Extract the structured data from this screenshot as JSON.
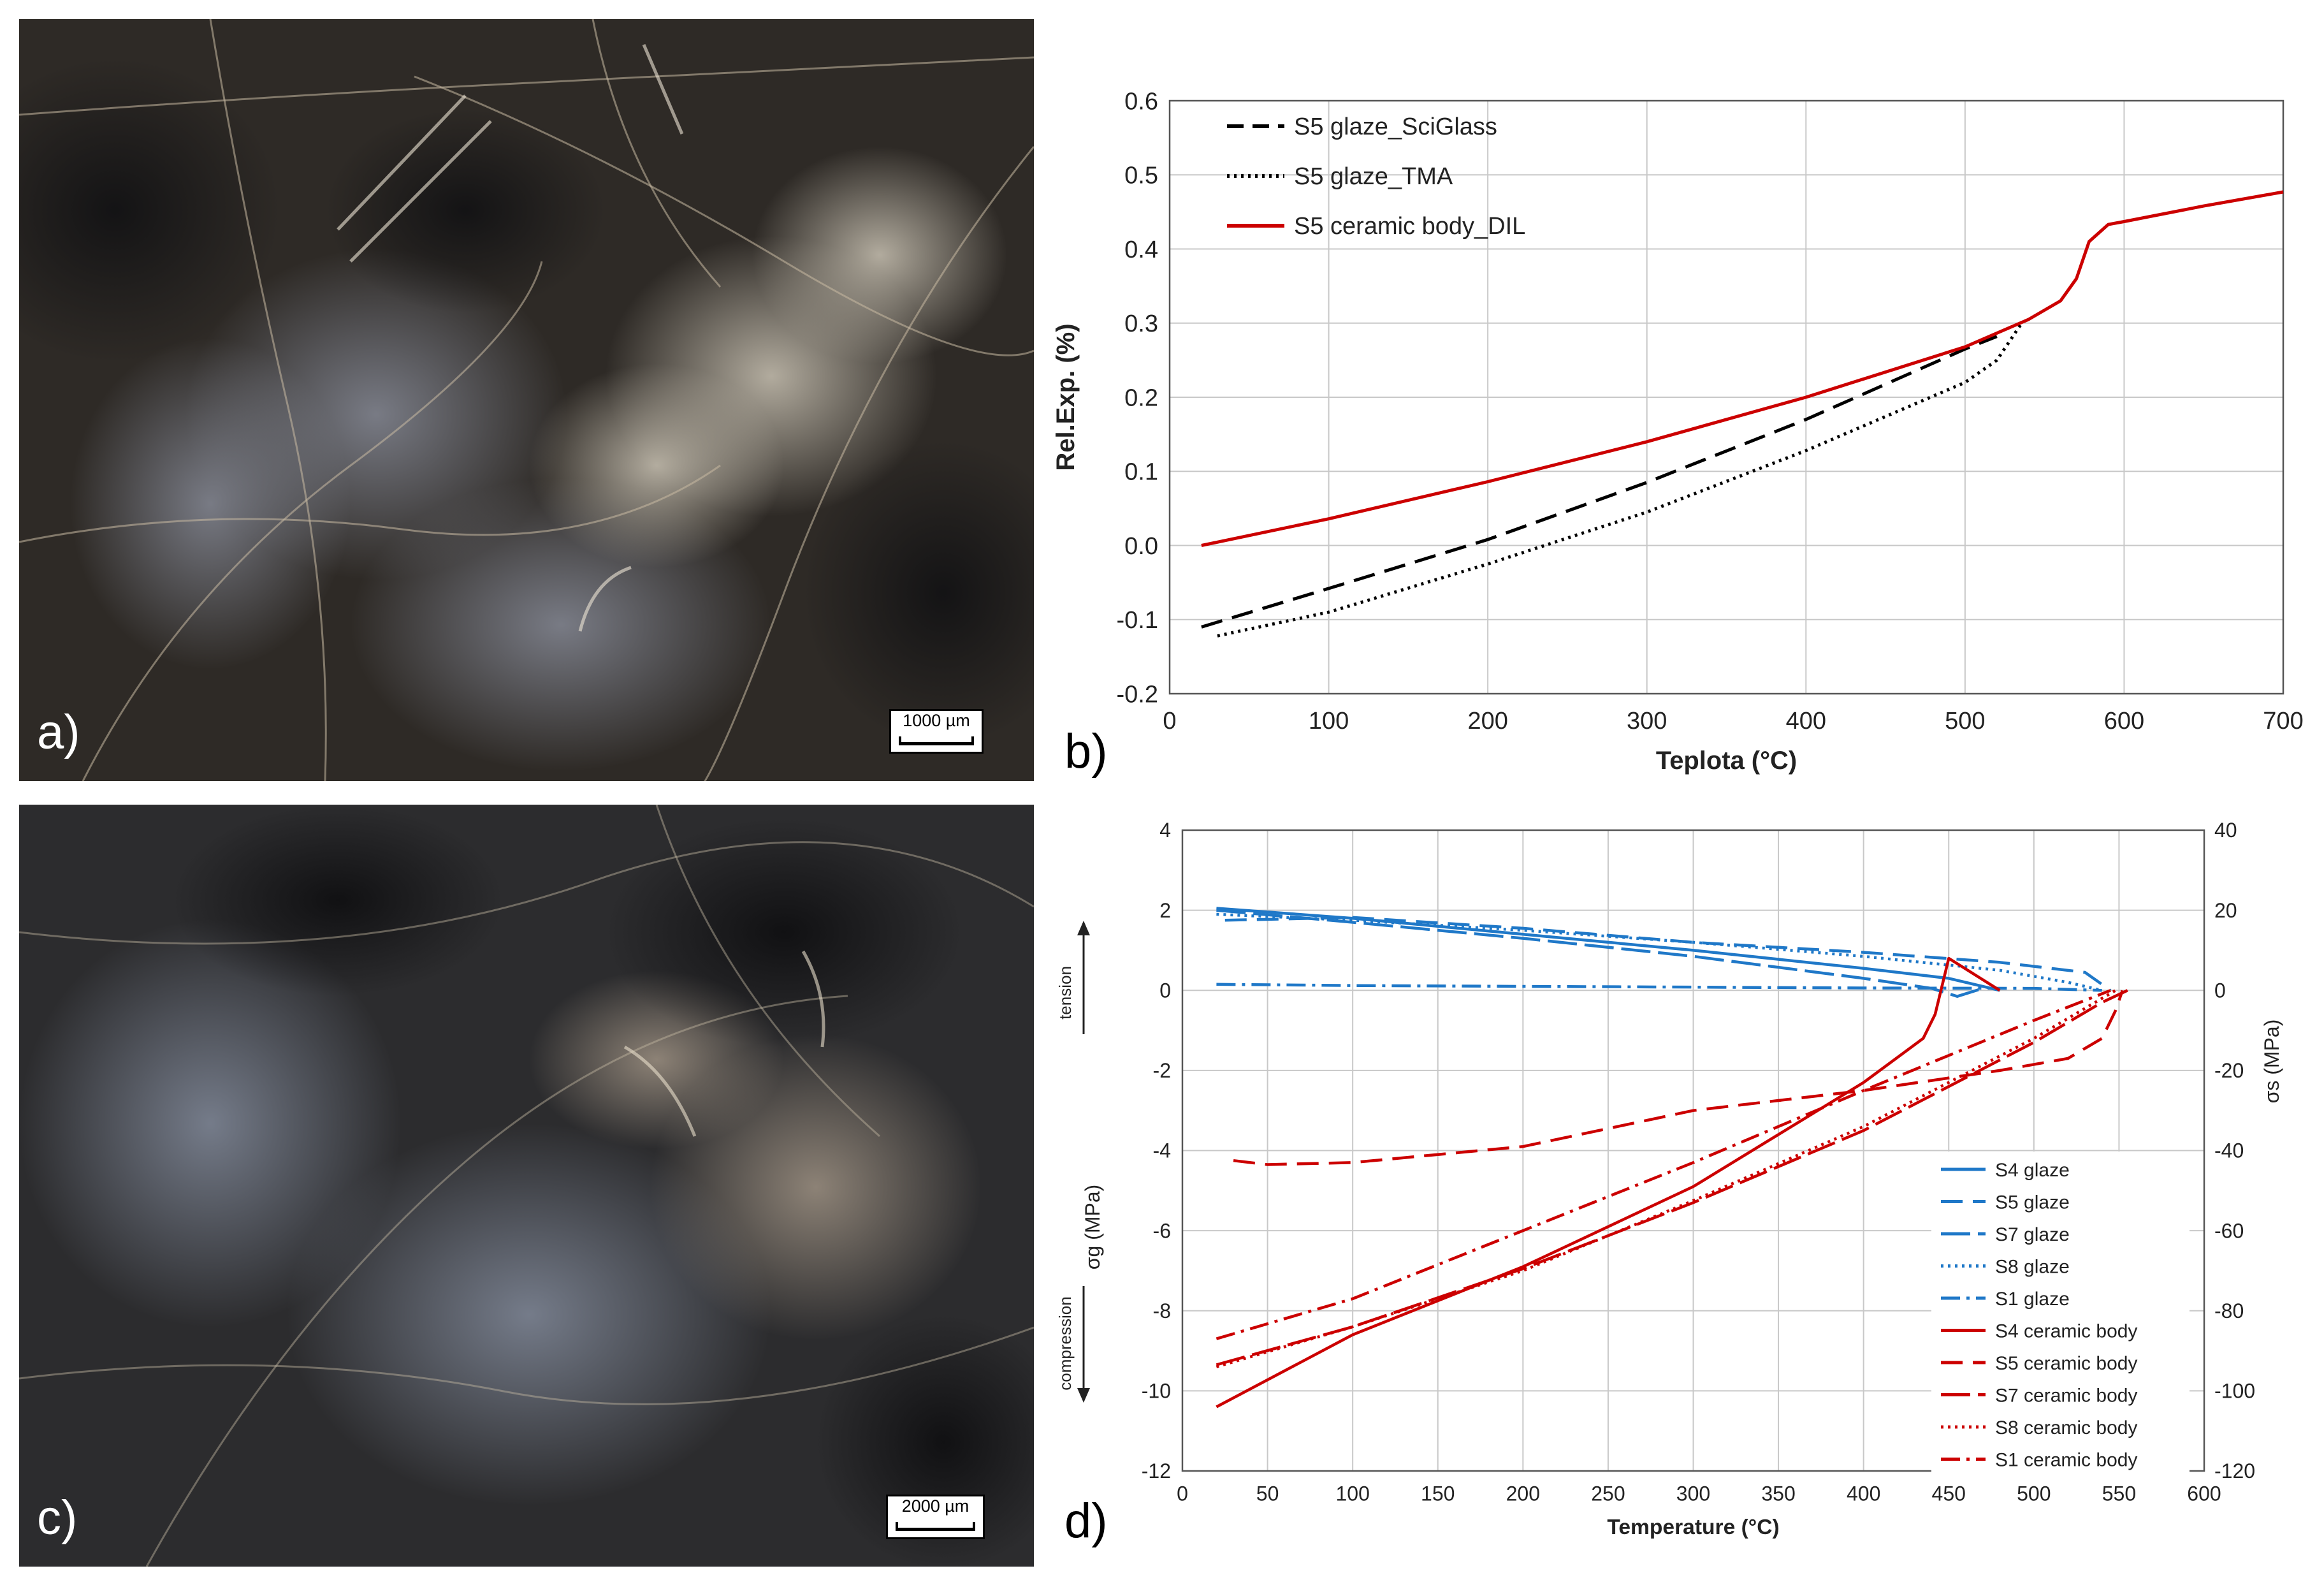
{
  "panels": {
    "a": {
      "letter": "a)",
      "scale_label": "1000 µm"
    },
    "b": {
      "letter": "b)"
    },
    "c": {
      "letter": "c)",
      "scale_label": "2000 µm"
    },
    "d": {
      "letter": "d)"
    }
  },
  "chart_data": [
    {
      "type": "line",
      "title": "",
      "xlabel": "Teplota (°C)",
      "ylabel": "Rel.Exp. (%)",
      "xlim": [
        0,
        700
      ],
      "ylim": [
        -0.2,
        0.6
      ],
      "xticks": [
        "0",
        "100",
        "200",
        "300",
        "400",
        "500",
        "600",
        "700"
      ],
      "yticks": [
        "-0.2",
        "-0.1",
        "0.0",
        "0.1",
        "0.2",
        "0.3",
        "0.4",
        "0.5",
        "0.6"
      ],
      "grid": true,
      "legend_position": "top-left",
      "series": [
        {
          "name": "S5 glaze_SciGlass",
          "color": "#000000",
          "style": "dashed",
          "x": [
            20,
            100,
            200,
            300,
            400,
            500,
            520
          ],
          "y": [
            -0.11,
            -0.058,
            0.008,
            0.085,
            0.17,
            0.265,
            0.282
          ]
        },
        {
          "name": "S5 glaze_TMA",
          "color": "#000000",
          "style": "dotted",
          "x": [
            30,
            100,
            200,
            300,
            400,
            500,
            520,
            535
          ],
          "y": [
            -0.122,
            -0.09,
            -0.025,
            0.045,
            0.128,
            0.22,
            0.25,
            0.298
          ]
        },
        {
          "name": "S5 ceramic body_DIL",
          "color": "#cc0000",
          "style": "solid",
          "x": [
            20,
            100,
            200,
            300,
            400,
            500,
            540,
            560,
            570,
            578,
            590,
            600,
            650,
            700
          ],
          "y": [
            0.0,
            0.036,
            0.086,
            0.14,
            0.2,
            0.268,
            0.305,
            0.33,
            0.36,
            0.41,
            0.433,
            0.437,
            0.458,
            0.477
          ]
        }
      ]
    },
    {
      "type": "line",
      "title": "",
      "xlabel": "Temperature (°C)",
      "ylabel": "σg (MPa)",
      "y2label": "σs (MPa)",
      "xlim": [
        0,
        600
      ],
      "ylim": [
        -12,
        4
      ],
      "y2lim": [
        -120,
        40
      ],
      "xticks": [
        "0",
        "50",
        "100",
        "150",
        "200",
        "250",
        "300",
        "350",
        "400",
        "450",
        "500",
        "550",
        "600"
      ],
      "yticks": [
        "-12",
        "-10",
        "-8",
        "-6",
        "-4",
        "-2",
        "0",
        "2",
        "4"
      ],
      "y2ticks": [
        "-120",
        "-100",
        "-80",
        "-60",
        "-40",
        "-20",
        "0",
        "20",
        "40"
      ],
      "grid": true,
      "legend_position": "bottom-right",
      "side_labels": {
        "tension": "tension",
        "compression": "compression"
      },
      "series": [
        {
          "name": "S4 glaze",
          "color": "#1f78c8",
          "style": "solid",
          "x": [
            20,
            100,
            200,
            300,
            400,
            450,
            480
          ],
          "y": [
            2.05,
            1.8,
            1.4,
            1.0,
            0.55,
            0.3,
            0.0
          ]
        },
        {
          "name": "S5 glaze",
          "color": "#1f78c8",
          "style": "dashed",
          "x": [
            25,
            100,
            200,
            300,
            400,
            480,
            530,
            545
          ],
          "y": [
            1.75,
            1.82,
            1.55,
            1.2,
            0.95,
            0.7,
            0.45,
            0.0
          ]
        },
        {
          "name": "S7 glaze",
          "color": "#1f78c8",
          "style": "longdash",
          "x": [
            20,
            100,
            200,
            300,
            400,
            440,
            455,
            470
          ],
          "y": [
            2.0,
            1.7,
            1.3,
            0.85,
            0.3,
            0.05,
            -0.15,
            0.05
          ]
        },
        {
          "name": "S8 glaze",
          "color": "#1f78c8",
          "style": "dotted",
          "x": [
            20,
            100,
            200,
            300,
            400,
            480,
            520,
            540
          ],
          "y": [
            1.9,
            1.75,
            1.5,
            1.2,
            0.85,
            0.5,
            0.2,
            0.0
          ]
        },
        {
          "name": "S1 glaze",
          "color": "#1f78c8",
          "style": "dashdot",
          "x": [
            20,
            100,
            200,
            300,
            400,
            500,
            540
          ],
          "y": [
            0.15,
            0.12,
            0.1,
            0.08,
            0.06,
            0.05,
            0.0
          ]
        },
        {
          "name": "S4 ceramic body",
          "color": "#cc0000",
          "style": "solid",
          "x": [
            20,
            100,
            200,
            300,
            400,
            435,
            442,
            450,
            465,
            480
          ],
          "y": [
            -10.4,
            -8.6,
            -6.9,
            -4.9,
            -2.3,
            -1.2,
            -0.6,
            0.8,
            0.4,
            0.0
          ]
        },
        {
          "name": "S5 ceramic body",
          "color": "#cc0000",
          "style": "dashed",
          "x": [
            30,
            50,
            100,
            200,
            300,
            400,
            480,
            520,
            540,
            548,
            552
          ],
          "y": [
            -4.25,
            -4.35,
            -4.3,
            -3.9,
            -3.0,
            -2.5,
            -2.0,
            -1.7,
            -1.2,
            -0.5,
            0.0
          ]
        },
        {
          "name": "S7 ceramic body",
          "color": "#cc0000",
          "style": "longdash",
          "x": [
            20,
            100,
            200,
            300,
            400,
            500,
            540,
            555
          ],
          "y": [
            -9.35,
            -8.4,
            -6.95,
            -5.3,
            -3.5,
            -1.3,
            -0.3,
            0.0
          ]
        },
        {
          "name": "S8 ceramic body",
          "color": "#cc0000",
          "style": "dotted",
          "x": [
            20,
            100,
            200,
            300,
            400,
            500,
            540,
            548
          ],
          "y": [
            -9.4,
            -8.4,
            -7.0,
            -5.25,
            -3.4,
            -1.2,
            -0.2,
            0.0
          ]
        },
        {
          "name": "S1 ceramic body",
          "color": "#cc0000",
          "style": "dashdot",
          "x": [
            20,
            100,
            200,
            300,
            400,
            500,
            530,
            545
          ],
          "y": [
            -8.7,
            -7.7,
            -6.0,
            -4.3,
            -2.5,
            -0.75,
            -0.25,
            0.0
          ]
        }
      ]
    }
  ]
}
